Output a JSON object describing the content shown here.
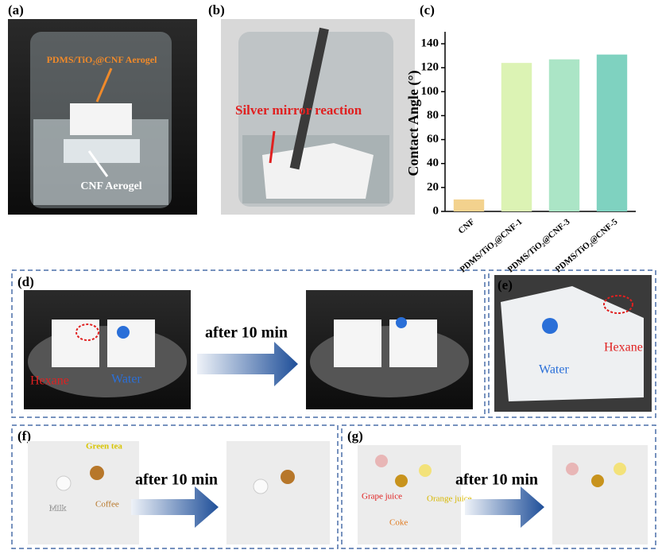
{
  "chart_data": {
    "type": "bar",
    "panel_label": "(c)",
    "ylabel": "Contact Angle (°)",
    "categories": [
      "CNF",
      "PDMS/TiO₂@CNF-1",
      "PDMS/TiO₂@CNF-3",
      "PDMS/TiO₂@CNF-5"
    ],
    "values": [
      10,
      124,
      127,
      131
    ],
    "colors": [
      "#f3d28e",
      "#dcf3b4",
      "#abe5c6",
      "#7fd2c0"
    ],
    "ylim": [
      0,
      150
    ],
    "yticks": [
      0,
      20,
      40,
      60,
      80,
      100,
      120,
      140
    ]
  },
  "panels": {
    "a": {
      "label": "(a)",
      "top": "PDMS/TiO₂@CNF Aerogel",
      "bottom": "CNF Aerogel"
    },
    "b": {
      "label": "(b)",
      "note": "Silver mirror reaction"
    },
    "d": {
      "label": "(d)",
      "hexane": "Hexane",
      "water": "Water",
      "arrow": "after 10 min"
    },
    "e": {
      "label": "(e)",
      "hexane": "Hexane",
      "water": "Water"
    },
    "f": {
      "label": "(f)",
      "tea": "Green tea",
      "coffee": "Coffee",
      "milk": "Milk",
      "arrow": "after 10 min"
    },
    "g": {
      "label": "(g)",
      "grape": "Grape juice",
      "coke": "Coke",
      "orange": "Orange juice",
      "arrow": "after 10 min"
    }
  }
}
